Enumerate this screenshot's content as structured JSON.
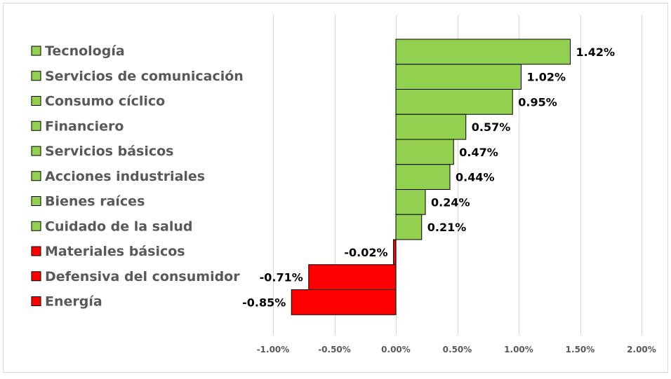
{
  "chart_data": {
    "type": "bar",
    "orientation": "horizontal",
    "title": "",
    "xlabel": "",
    "ylabel": "",
    "xlim": [
      -1.0,
      2.0
    ],
    "x_ticks": [
      -1.0,
      -0.5,
      0.0,
      0.5,
      1.0,
      1.5,
      2.0
    ],
    "x_tick_labels": [
      "-1.00%",
      "-0.50%",
      "0.00%",
      "0.50%",
      "1.00%",
      "1.50%",
      "2.00%"
    ],
    "grid": "vertical",
    "legend": "left",
    "categories": [
      "Tecnología",
      "Servicios de comunicación",
      "Consumo cíclico",
      "Financiero",
      "Servicios básicos",
      "Acciones industriales",
      "Bienes raíces",
      "Cuidado de la salud",
      "Materiales básicos",
      "Defensiva del consumidor",
      "Energía"
    ],
    "values": [
      1.42,
      1.02,
      0.95,
      0.57,
      0.47,
      0.44,
      0.24,
      0.21,
      -0.02,
      -0.71,
      -0.85
    ],
    "value_labels": [
      "1.42%",
      "1.02%",
      "0.95%",
      "0.57%",
      "0.47%",
      "0.44%",
      "0.24%",
      "0.21%",
      "-0.02%",
      "-0.71%",
      "-0.85%"
    ],
    "colors": {
      "positive": "#92d050",
      "negative": "#ff0000",
      "border": "#000000",
      "grid": "#d9d9d9",
      "frame": "#d9d9d9"
    }
  }
}
